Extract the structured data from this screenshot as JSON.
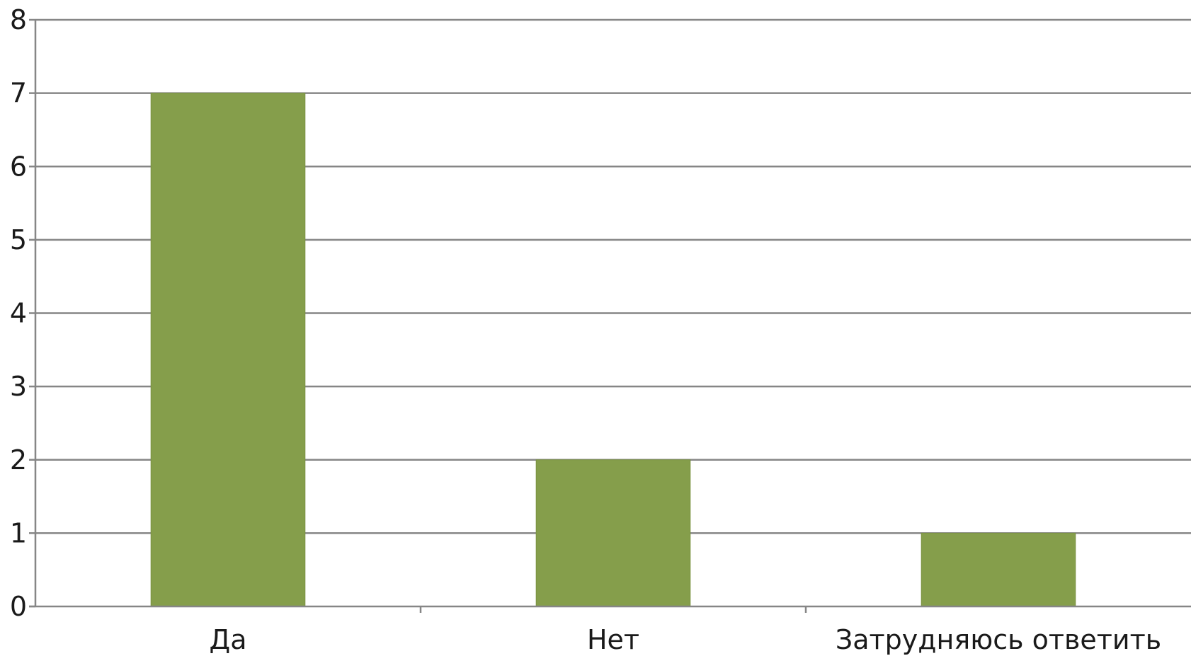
{
  "chart_data": {
    "type": "bar",
    "categories": [
      "Да",
      "Нет",
      "Затрудняюсь ответить"
    ],
    "series": [
      {
        "values": [
          7,
          2,
          1
        ],
        "color": "#859e4b"
      }
    ],
    "title": "",
    "xlabel": "",
    "ylabel": "",
    "ylim": [
      0,
      8
    ],
    "yticks": [
      "0",
      "1",
      "2",
      "3",
      "4",
      "5",
      "6",
      "7",
      "8"
    ],
    "grid": true,
    "gridline_color": "#868686",
    "axis_color": "#868686",
    "legend": "none"
  }
}
